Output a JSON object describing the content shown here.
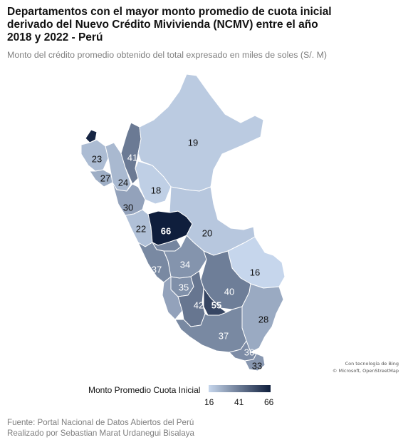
{
  "title": "Departamentos con el mayor monto promedio de cuota inicial\nderivado del Nuevo Crédito Mivivienda (NCMV) entre el año\n2018 y 2022  - Perú",
  "subtitle": "Monto del crédito promedio obtenido del total expresado en miles de soles (S/. M)",
  "attribution": {
    "line1": "Con tecnología de Bing",
    "line2": "© Microsoft, OpenStreetMap"
  },
  "legend": {
    "title": "Monto Promedio Cuota Inicial",
    "min": "16",
    "mid": "41",
    "max": "66",
    "color_min": "#c6d6ec",
    "color_max": "#0f1e3c"
  },
  "footer": {
    "source": "Fuente: Portal Nacional de Datos Abiertos del Perú",
    "author": "Realizado por Sebastian Marat Urdanegui Bisalaya"
  },
  "map_labels": [
    {
      "value": 19
    },
    {
      "value": 41
    },
    {
      "value": 23
    },
    {
      "value": 27
    },
    {
      "value": 24
    },
    {
      "value": 18
    },
    {
      "value": 30
    },
    {
      "value": 22
    },
    {
      "value": 66
    },
    {
      "value": 20
    },
    {
      "value": 16
    },
    {
      "value": 37
    },
    {
      "value": 34
    },
    {
      "value": 35
    },
    {
      "value": 40
    },
    {
      "value": 42
    },
    {
      "value": 55
    },
    {
      "value": 28
    },
    {
      "value": 37
    },
    {
      "value": 36
    },
    {
      "value": 33
    }
  ]
}
